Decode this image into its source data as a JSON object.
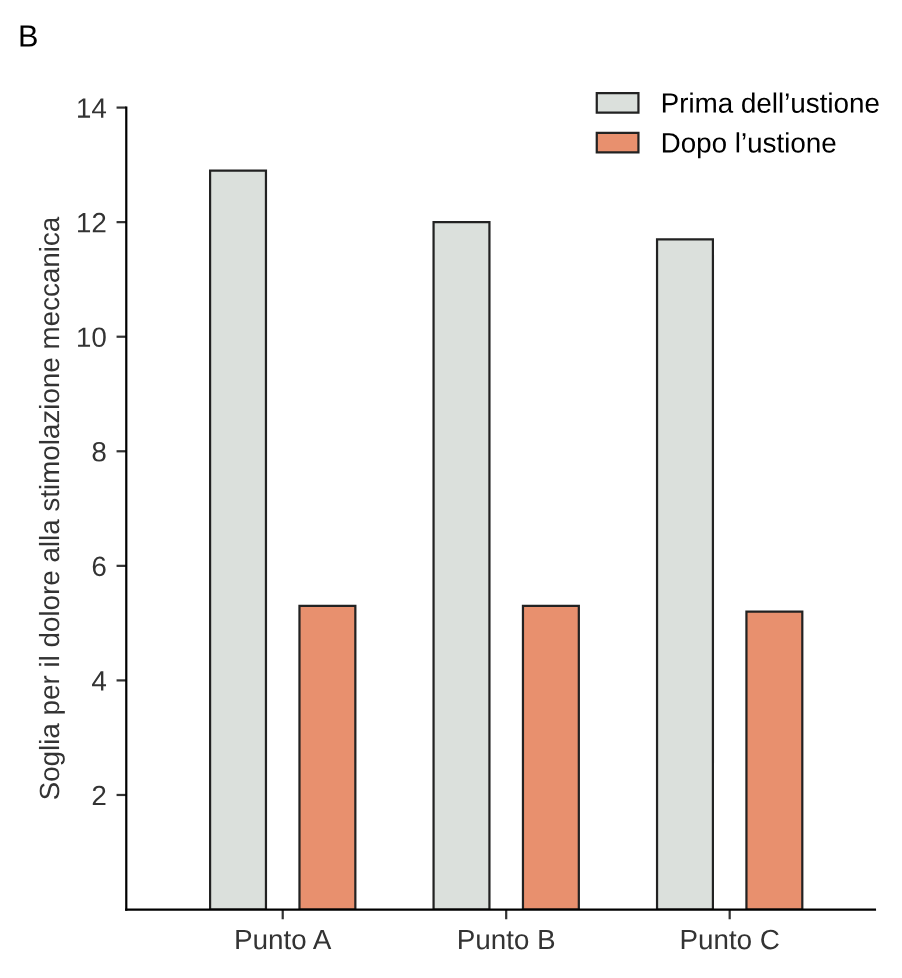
{
  "chart_data": {
    "type": "bar",
    "title": "B",
    "ylabel": "Soglia per il dolore alla stimolazione meccanica",
    "categories": [
      "Punto A",
      "Punto B",
      "Punto C"
    ],
    "series": [
      {
        "name": "Prima dell’ustione",
        "color": "#dbe0dc",
        "values": [
          12.9,
          12.0,
          11.7
        ]
      },
      {
        "name": "Dopo l’ustione",
        "color": "#e8906e",
        "values": [
          5.3,
          5.3,
          5.2
        ]
      }
    ],
    "ylim": [
      0,
      14
    ],
    "yticks": [
      2,
      4,
      6,
      8,
      10,
      12,
      14
    ],
    "grid": false,
    "legend": "top right"
  }
}
